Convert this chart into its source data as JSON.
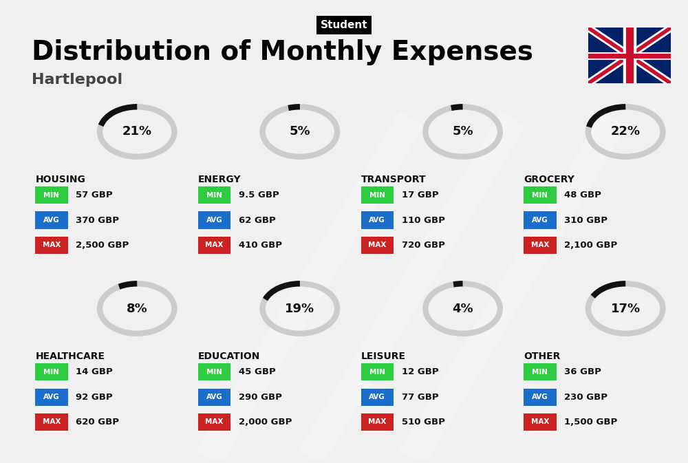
{
  "title": "Distribution of Monthly Expenses",
  "subtitle": "Student",
  "location": "Hartlepool",
  "bg_color": "#f0f0f0",
  "categories": [
    {
      "name": "HOUSING",
      "pct": 21,
      "min": "57 GBP",
      "avg": "370 GBP",
      "max": "2,500 GBP",
      "col": 0,
      "row": 0
    },
    {
      "name": "ENERGY",
      "pct": 5,
      "min": "9.5 GBP",
      "avg": "62 GBP",
      "max": "410 GBP",
      "col": 1,
      "row": 0
    },
    {
      "name": "TRANSPORT",
      "pct": 5,
      "min": "17 GBP",
      "avg": "110 GBP",
      "max": "720 GBP",
      "col": 2,
      "row": 0
    },
    {
      "name": "GROCERY",
      "pct": 22,
      "min": "48 GBP",
      "avg": "310 GBP",
      "max": "2,100 GBP",
      "col": 3,
      "row": 0
    },
    {
      "name": "HEALTHCARE",
      "pct": 8,
      "min": "14 GBP",
      "avg": "92 GBP",
      "max": "620 GBP",
      "col": 0,
      "row": 1
    },
    {
      "name": "EDUCATION",
      "pct": 19,
      "min": "45 GBP",
      "avg": "290 GBP",
      "max": "2,000 GBP",
      "col": 1,
      "row": 1
    },
    {
      "name": "LEISURE",
      "pct": 4,
      "min": "12 GBP",
      "avg": "77 GBP",
      "max": "510 GBP",
      "col": 2,
      "row": 1
    },
    {
      "name": "OTHER",
      "pct": 17,
      "min": "36 GBP",
      "avg": "230 GBP",
      "max": "1,500 GBP",
      "col": 3,
      "row": 1
    }
  ],
  "min_color": "#2ecc40",
  "avg_color": "#1a6dc9",
  "max_color": "#cc2222",
  "label_text_color": "#ffffff",
  "value_text_color": "#111111",
  "category_name_color": "#111111",
  "pct_color": "#111111",
  "arc_filled_color": "#111111",
  "arc_empty_color": "#cccccc"
}
